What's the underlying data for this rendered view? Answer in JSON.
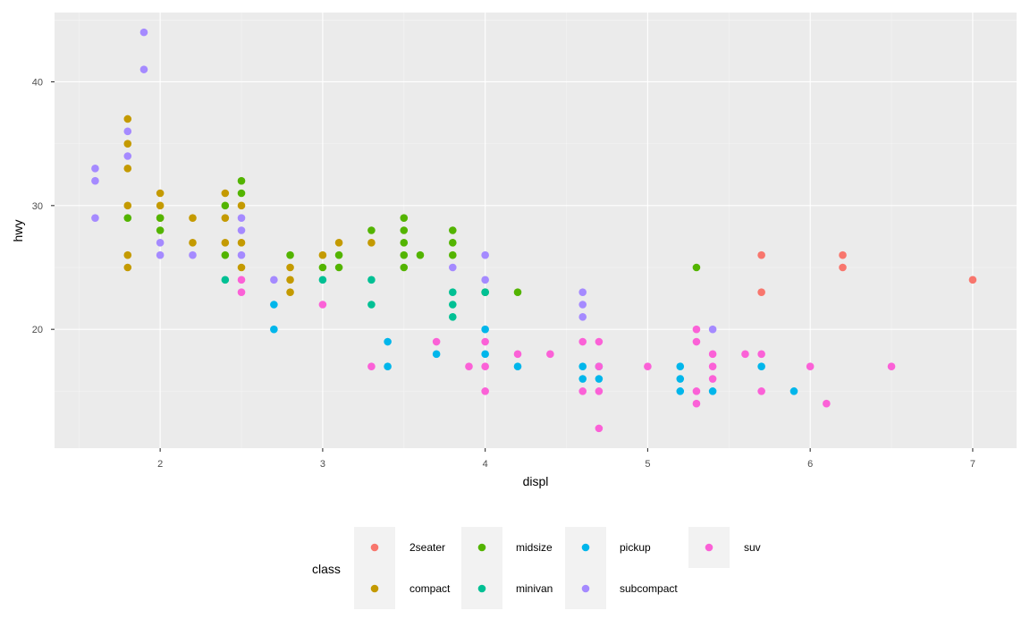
{
  "chart_data": {
    "type": "scatter",
    "xlabel": "displ",
    "ylabel": "hwy",
    "xlim": [
      1.35,
      7.27
    ],
    "ylim": [
      10.4,
      45.6
    ],
    "x_ticks": [
      2,
      3,
      4,
      5,
      6,
      7
    ],
    "x_tick_labels": [
      "2",
      "3",
      "4",
      "5",
      "6",
      "7"
    ],
    "y_ticks": [
      20,
      30,
      40
    ],
    "y_tick_labels": [
      "20",
      "30",
      "40"
    ],
    "grid": true,
    "legend": {
      "title": "class",
      "placement": "bottom"
    },
    "series": [
      {
        "name": "2seater",
        "color": "#F8766D",
        "points": [
          [
            5.7,
            26
          ],
          [
            5.7,
            23
          ],
          [
            6.2,
            26
          ],
          [
            6.2,
            25
          ],
          [
            7.0,
            24
          ]
        ]
      },
      {
        "name": "compact",
        "color": "#C49A00",
        "points": [
          [
            1.8,
            37
          ],
          [
            1.8,
            35
          ],
          [
            1.8,
            33
          ],
          [
            1.8,
            30
          ],
          [
            1.8,
            26
          ],
          [
            1.8,
            25
          ],
          [
            2.0,
            31
          ],
          [
            2.0,
            30
          ],
          [
            2.0,
            29
          ],
          [
            2.2,
            29
          ],
          [
            2.2,
            27
          ],
          [
            2.4,
            31
          ],
          [
            2.4,
            29
          ],
          [
            2.4,
            27
          ],
          [
            2.5,
            30
          ],
          [
            2.5,
            27
          ],
          [
            2.5,
            25
          ],
          [
            2.8,
            25
          ],
          [
            2.8,
            24
          ],
          [
            2.8,
            23
          ],
          [
            3.0,
            26
          ],
          [
            3.1,
            27
          ],
          [
            3.3,
            27
          ]
        ]
      },
      {
        "name": "midsize",
        "color": "#53B400",
        "points": [
          [
            1.8,
            29
          ],
          [
            2.0,
            29
          ],
          [
            2.0,
            28
          ],
          [
            2.4,
            30
          ],
          [
            2.4,
            26
          ],
          [
            2.5,
            32
          ],
          [
            2.5,
            31
          ],
          [
            2.8,
            26
          ],
          [
            3.0,
            25
          ],
          [
            3.1,
            26
          ],
          [
            3.1,
            25
          ],
          [
            3.3,
            28
          ],
          [
            3.5,
            29
          ],
          [
            3.5,
            28
          ],
          [
            3.5,
            27
          ],
          [
            3.5,
            26
          ],
          [
            3.5,
            25
          ],
          [
            3.6,
            26
          ],
          [
            3.8,
            28
          ],
          [
            3.8,
            27
          ],
          [
            3.8,
            26
          ],
          [
            4.0,
            23
          ],
          [
            4.2,
            23
          ],
          [
            5.3,
            25
          ]
        ]
      },
      {
        "name": "minivan",
        "color": "#00C094",
        "points": [
          [
            2.4,
            24
          ],
          [
            3.0,
            24
          ],
          [
            3.3,
            24
          ],
          [
            3.3,
            22
          ],
          [
            3.8,
            23
          ],
          [
            3.8,
            22
          ],
          [
            3.8,
            21
          ],
          [
            4.0,
            23
          ]
        ]
      },
      {
        "name": "pickup",
        "color": "#00B6EB",
        "points": [
          [
            2.7,
            22
          ],
          [
            2.7,
            20
          ],
          [
            3.4,
            19
          ],
          [
            3.4,
            17
          ],
          [
            3.7,
            18
          ],
          [
            4.0,
            20
          ],
          [
            4.0,
            18
          ],
          [
            4.2,
            17
          ],
          [
            4.6,
            17
          ],
          [
            4.6,
            16
          ],
          [
            4.7,
            17
          ],
          [
            4.7,
            16
          ],
          [
            5.2,
            17
          ],
          [
            5.2,
            16
          ],
          [
            5.2,
            15
          ],
          [
            5.4,
            15
          ],
          [
            5.7,
            17
          ],
          [
            5.9,
            15
          ]
        ]
      },
      {
        "name": "subcompact",
        "color": "#A58AFF",
        "points": [
          [
            1.6,
            33
          ],
          [
            1.6,
            32
          ],
          [
            1.6,
            29
          ],
          [
            1.8,
            36
          ],
          [
            1.8,
            34
          ],
          [
            1.9,
            44
          ],
          [
            1.9,
            41
          ],
          [
            2.0,
            27
          ],
          [
            2.0,
            26
          ],
          [
            2.2,
            26
          ],
          [
            2.5,
            29
          ],
          [
            2.5,
            28
          ],
          [
            2.5,
            26
          ],
          [
            2.7,
            24
          ],
          [
            3.8,
            25
          ],
          [
            4.0,
            26
          ],
          [
            4.0,
            24
          ],
          [
            4.6,
            23
          ],
          [
            4.6,
            22
          ],
          [
            4.6,
            21
          ],
          [
            5.4,
            20
          ]
        ]
      },
      {
        "name": "suv",
        "color": "#FB61D7",
        "points": [
          [
            2.5,
            24
          ],
          [
            2.5,
            23
          ],
          [
            3.0,
            22
          ],
          [
            3.3,
            17
          ],
          [
            3.7,
            19
          ],
          [
            3.9,
            17
          ],
          [
            4.0,
            19
          ],
          [
            4.0,
            17
          ],
          [
            4.0,
            15
          ],
          [
            4.2,
            18
          ],
          [
            4.4,
            18
          ],
          [
            4.6,
            19
          ],
          [
            4.6,
            15
          ],
          [
            4.7,
            19
          ],
          [
            4.7,
            17
          ],
          [
            4.7,
            15
          ],
          [
            4.7,
            12
          ],
          [
            5.0,
            17
          ],
          [
            5.3,
            20
          ],
          [
            5.3,
            19
          ],
          [
            5.3,
            15
          ],
          [
            5.3,
            14
          ],
          [
            5.4,
            18
          ],
          [
            5.4,
            17
          ],
          [
            5.4,
            16
          ],
          [
            5.6,
            18
          ],
          [
            5.7,
            18
          ],
          [
            5.7,
            15
          ],
          [
            6.0,
            17
          ],
          [
            6.1,
            14
          ],
          [
            6.5,
            17
          ]
        ]
      }
    ]
  }
}
